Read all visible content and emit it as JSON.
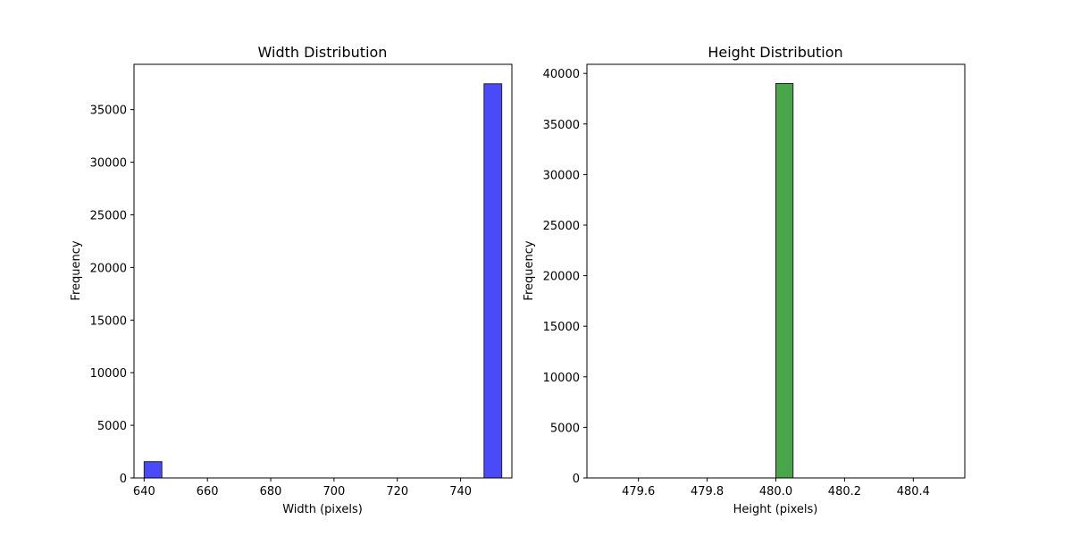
{
  "chart_data": [
    {
      "type": "bar",
      "title": "Width Distribution",
      "xlabel": "Width (pixels)",
      "ylabel": "Frequency",
      "xlim": [
        636.8,
        756.2
      ],
      "ylim": [
        0,
        39300
      ],
      "xticks": [
        640,
        660,
        680,
        700,
        720,
        740
      ],
      "xtick_labels": [
        "640",
        "660",
        "680",
        "700",
        "720",
        "740"
      ],
      "yticks": [
        0,
        5000,
        10000,
        15000,
        20000,
        25000,
        30000,
        35000
      ],
      "ytick_labels": [
        "0",
        "5000",
        "10000",
        "15000",
        "20000",
        "25000",
        "30000",
        "35000"
      ],
      "color": "#4a4af8",
      "bars": [
        {
          "x0": 640,
          "x1": 645.6,
          "value": 1550
        },
        {
          "x0": 747.4,
          "x1": 753,
          "value": 37450
        }
      ]
    },
    {
      "type": "bar",
      "title": "Height Distribution",
      "xlabel": "Height (pixels)",
      "ylabel": "Frequency",
      "xlim": [
        479.45,
        480.55
      ],
      "ylim": [
        0,
        40900
      ],
      "xticks": [
        479.6,
        479.8,
        480.0,
        480.2,
        480.4
      ],
      "xtick_labels": [
        "479.6",
        "479.8",
        "480.0",
        "480.2",
        "480.4"
      ],
      "yticks": [
        0,
        5000,
        10000,
        15000,
        20000,
        25000,
        30000,
        35000,
        40000
      ],
      "ytick_labels": [
        "0",
        "5000",
        "10000",
        "15000",
        "20000",
        "25000",
        "30000",
        "35000",
        "40000"
      ],
      "color": "#4aa64a",
      "bars": [
        {
          "x0": 479.5,
          "x1": 479.55,
          "value": 0
        },
        {
          "x0": 479.55,
          "x1": 479.6,
          "value": 0
        },
        {
          "x0": 479.6,
          "x1": 479.65,
          "value": 0
        },
        {
          "x0": 479.65,
          "x1": 479.7,
          "value": 0
        },
        {
          "x0": 479.7,
          "x1": 479.75,
          "value": 0
        },
        {
          "x0": 479.75,
          "x1": 479.8,
          "value": 0
        },
        {
          "x0": 479.8,
          "x1": 479.85,
          "value": 0
        },
        {
          "x0": 479.85,
          "x1": 479.9,
          "value": 0
        },
        {
          "x0": 479.9,
          "x1": 479.95,
          "value": 0
        },
        {
          "x0": 479.95,
          "x1": 480.0,
          "value": 0
        },
        {
          "x0": 480.0,
          "x1": 480.05,
          "value": 39000
        },
        {
          "x0": 480.05,
          "x1": 480.1,
          "value": 0
        },
        {
          "x0": 480.1,
          "x1": 480.15,
          "value": 0
        },
        {
          "x0": 480.15,
          "x1": 480.2,
          "value": 0
        },
        {
          "x0": 480.2,
          "x1": 480.25,
          "value": 0
        },
        {
          "x0": 480.25,
          "x1": 480.3,
          "value": 0
        },
        {
          "x0": 480.3,
          "x1": 480.35,
          "value": 0
        },
        {
          "x0": 480.35,
          "x1": 480.4,
          "value": 0
        },
        {
          "x0": 480.4,
          "x1": 480.45,
          "value": 0
        },
        {
          "x0": 480.45,
          "x1": 480.5,
          "value": 0
        }
      ]
    }
  ]
}
